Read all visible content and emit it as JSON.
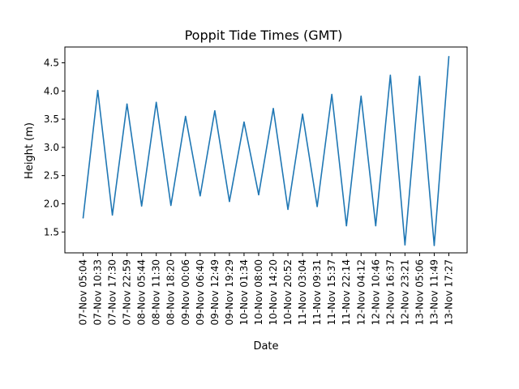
{
  "chart_data": {
    "type": "line",
    "title": "Poppit Tide Times (GMT)",
    "xlabel": "Date",
    "ylabel": "Height (m)",
    "ylim": [
      1.13,
      4.78
    ],
    "yticks": [
      1.5,
      2.0,
      2.5,
      3.0,
      3.5,
      4.0,
      4.5
    ],
    "ytick_labels": [
      "1.5",
      "2.0",
      "2.5",
      "3.0",
      "3.5",
      "4.0",
      "4.5"
    ],
    "grid": false,
    "categories": [
      "07-Nov 05:04",
      "07-Nov 10:33",
      "07-Nov 17:30",
      "07-Nov 22:59",
      "08-Nov 05:44",
      "08-Nov 11:30",
      "08-Nov 18:20",
      "09-Nov 00:06",
      "09-Nov 06:40",
      "09-Nov 12:49",
      "09-Nov 19:29",
      "10-Nov 01:34",
      "10-Nov 08:00",
      "10-Nov 14:20",
      "10-Nov 20:52",
      "11-Nov 03:04",
      "11-Nov 09:31",
      "11-Nov 15:37",
      "11-Nov 22:14",
      "12-Nov 04:12",
      "12-Nov 10:46",
      "12-Nov 16:37",
      "12-Nov 23:21",
      "13-Nov 05:06",
      "13-Nov 11:49",
      "13-Nov 17:27"
    ],
    "series": [
      {
        "color": "#1f77b4",
        "values": [
          1.75,
          4.01,
          1.8,
          3.77,
          1.96,
          3.8,
          1.97,
          3.55,
          2.14,
          3.65,
          2.04,
          3.45,
          2.16,
          3.69,
          1.9,
          3.59,
          1.95,
          3.94,
          1.61,
          3.91,
          1.61,
          4.28,
          1.27,
          4.26,
          1.26,
          4.61
        ]
      }
    ]
  }
}
